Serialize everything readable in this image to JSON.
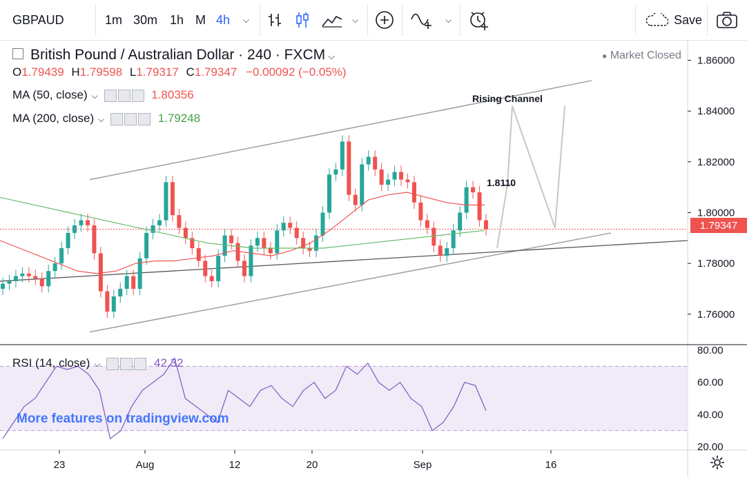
{
  "toolbar": {
    "symbol": "GBPAUD",
    "intervals": [
      "1m",
      "30m",
      "1h",
      "M",
      "4h"
    ],
    "active_interval": "4h",
    "save_label": "Save",
    "icons": [
      "bar-style-icon",
      "candles-icon",
      "indicators-icon",
      "add-compare-icon",
      "drawing-icon",
      "alert-icon",
      "camera-icon"
    ]
  },
  "legend": {
    "title": "British Pound / Australian Dollar · 240 · FXCM",
    "market_status": "Market Closed",
    "o_label": "O",
    "o": "1.79439",
    "h_label": "H",
    "h": "1.79598",
    "l_label": "L",
    "l": "1.79317",
    "c_label": "C",
    "c": "1.79347",
    "change": "−0.00092 (−0.05%)",
    "ma50_label": "MA (50, close)",
    "ma50_value": "1.80356",
    "ma200_label": "MA (200, close)",
    "ma200_value": "1.79248",
    "rsi_label": "RSI (14, close)",
    "rsi_value": "42.32"
  },
  "watermark": "More features on tradingview.com",
  "current_price": "1.79347",
  "colors": {
    "up": "#26a69a",
    "down": "#ef5350",
    "ma50": "#ef5350",
    "ma200": "#66bb6a",
    "rsi": "#7e57c2",
    "channel": "#9e9e9e",
    "projection": "#c7c7c7",
    "accent": "#2962ff"
  },
  "chart_data": {
    "type": "candlestick",
    "title": "British Pound / Australian Dollar · 240 · FXCM",
    "x_ticks": [
      "23",
      "Aug",
      "12",
      "20",
      "Sep",
      "16"
    ],
    "y_ticks": [
      "1.86000",
      "1.84000",
      "1.82000",
      "1.80000",
      "1.78000",
      "1.76000"
    ],
    "ylim": [
      1.748,
      1.868
    ],
    "annotations": [
      "Rising Channel",
      "1.8110"
    ],
    "projection_path": [
      1.786,
      1.811,
      1.842,
      1.794,
      1.842
    ],
    "channel_upper": [
      [
        1.813,
        1.852
      ]
    ],
    "channel_lower": [
      [
        1.753,
        1.792
      ]
    ],
    "support_line": [
      1.773,
      1.789
    ],
    "close_series": [
      1.772,
      1.773,
      1.775,
      1.776,
      1.775,
      1.774,
      1.771,
      1.777,
      1.78,
      1.786,
      1.792,
      1.795,
      1.797,
      1.795,
      1.784,
      1.769,
      1.761,
      1.767,
      1.77,
      1.775,
      1.77,
      1.782,
      1.792,
      1.795,
      1.797,
      1.812,
      1.799,
      1.794,
      1.79,
      1.786,
      1.781,
      1.775,
      1.773,
      1.783,
      1.791,
      1.788,
      1.781,
      1.775,
      1.787,
      1.79,
      1.786,
      1.784,
      1.793,
      1.796,
      1.794,
      1.79,
      1.786,
      1.785,
      1.791,
      1.8,
      1.815,
      1.817,
      1.828,
      1.807,
      1.803,
      1.819,
      1.822,
      1.817,
      1.811,
      1.813,
      1.816,
      1.813,
      1.812,
      1.804,
      1.797,
      1.794,
      1.787,
      1.783,
      1.786,
      1.793,
      1.8,
      1.81,
      1.808,
      1.797,
      1.7935
    ],
    "ma50": [
      1.789,
      1.786,
      1.783,
      1.78,
      1.777,
      1.776,
      1.777,
      1.78,
      1.781,
      1.781,
      1.782,
      1.783,
      1.785,
      1.784,
      1.783,
      1.785,
      1.788,
      1.793,
      1.799,
      1.805,
      1.807,
      1.808,
      1.806,
      1.804,
      1.803,
      1.803
    ],
    "ma200": [
      1.806,
      1.804,
      1.802,
      1.8,
      1.798,
      1.796,
      1.794,
      1.792,
      1.79,
      1.788,
      1.787,
      1.786,
      1.786,
      1.786,
      1.786,
      1.787,
      1.788,
      1.789,
      1.79,
      1.791,
      1.792,
      1.793
    ],
    "rsi": {
      "ylim": [
        20,
        80
      ],
      "y_ticks": [
        "80.00",
        "60.00",
        "40.00",
        "20.00"
      ],
      "band": [
        30,
        70
      ],
      "values": [
        25,
        35,
        45,
        50,
        60,
        70,
        68,
        70,
        65,
        55,
        25,
        30,
        45,
        55,
        60,
        65,
        75,
        50,
        45,
        40,
        35,
        55,
        50,
        45,
        55,
        58,
        50,
        45,
        55,
        60,
        50,
        55,
        70,
        65,
        72,
        60,
        55,
        60,
        50,
        45,
        30,
        35,
        45,
        60,
        58,
        42.32
      ]
    }
  }
}
